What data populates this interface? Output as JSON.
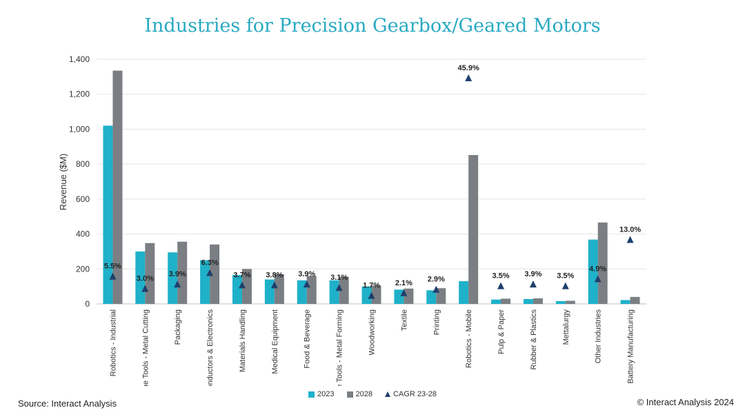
{
  "chart_data": {
    "type": "bar",
    "title": "Industries for Precision Gearbox/Geared Motors",
    "ylabel": "Revenue ($M)",
    "ylim": [
      0,
      1400
    ],
    "yticks": [
      "0",
      "200",
      "400",
      "600",
      "800",
      "1,000",
      "1,200",
      "1,400"
    ],
    "ytick_values": [
      0,
      200,
      400,
      600,
      800,
      1000,
      1200,
      1400
    ],
    "grid": true,
    "legend_position": "bottom",
    "categories": [
      "Robotics - Industrial",
      "Machine Tools - Metal Cutting",
      "Packaging",
      "Semiconductors & Electronics",
      "Materials Handling",
      "Medical Equipment",
      "Food & Beverage",
      "Machine Tools - Metal Forming",
      "Woodworking",
      "Textile",
      "Printing",
      "Robotics - Mobile",
      "Pulp & Paper",
      "Rubber & Plastics",
      "Mettalurgy",
      "Other Industries",
      "Battery Manufacturing"
    ],
    "series": [
      {
        "name": "2023",
        "color": "#1fb1c9",
        "values": [
          1020,
          300,
          295,
          250,
          165,
          140,
          135,
          135,
          100,
          82,
          78,
          130,
          25,
          28,
          16,
          368,
          22
        ]
      },
      {
        "name": "2028",
        "color": "#7b7f83",
        "values": [
          1335,
          348,
          356,
          340,
          200,
          170,
          160,
          155,
          105,
          88,
          90,
          852,
          30,
          32,
          18,
          466,
          40
        ]
      }
    ],
    "cagr": {
      "name": "CAGR 23-28",
      "color": "#1f3f6b",
      "labels": [
        "5.5%",
        "3.0%",
        "3.9%",
        "6.3%",
        "3.7%",
        "3.8%",
        "3.9%",
        "3.1%",
        "1.7%",
        "2.1%",
        "2.9%",
        "45.9%",
        "3.5%",
        "3.9%",
        "3.5%",
        "4.9%",
        "13.0%"
      ],
      "marker_y": [
        155,
        85,
        110,
        175,
        105,
        105,
        110,
        90,
        45,
        60,
        80,
        1290,
        100,
        110,
        100,
        140,
        365
      ]
    }
  },
  "footer": {
    "source": "Source: Interact Analysis",
    "copyright": "© Interact Analysis 2024"
  }
}
